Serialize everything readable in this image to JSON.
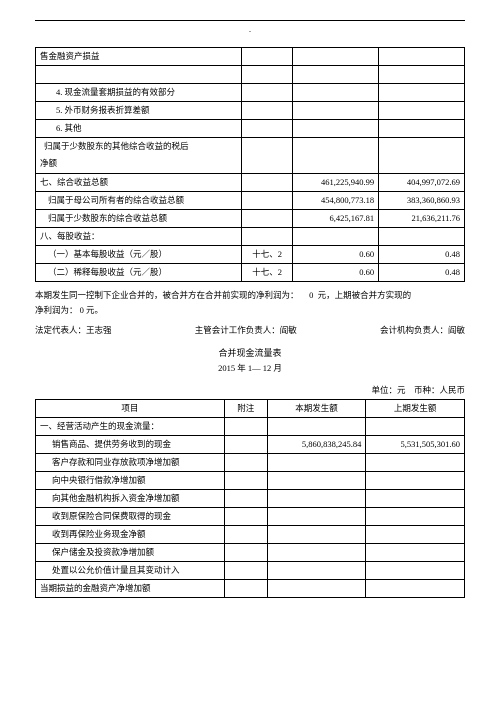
{
  "table1": {
    "rows": [
      {
        "label": "售金融资产损益",
        "note": "",
        "c": "",
        "d": "",
        "pad": 4
      },
      {
        "blank": true
      },
      {
        "label": "4. 现金流量套期损益的有效部分",
        "note": "",
        "c": "",
        "d": "",
        "pad": 20
      },
      {
        "label": "5. 外币财务报表折算差额",
        "note": "",
        "c": "",
        "d": "",
        "pad": 20
      },
      {
        "label": "6. 其他",
        "note": "",
        "c": "",
        "d": "",
        "pad": 20
      },
      {
        "label": "归属于少数股东的其他综合收益的税后",
        "note": "",
        "c": "",
        "d": "",
        "pad": 8,
        "tall": true
      },
      {
        "label": "净额",
        "note": "",
        "c": "",
        "d": "",
        "pad": 4,
        "noTop": true
      },
      {
        "label": "七、综合收益总额",
        "note": "",
        "c": "461,225,940.99",
        "d": "404,997,072.69",
        "pad": 4
      },
      {
        "label": "归属于母公司所有者的综合收益总额",
        "note": "",
        "c": "454,800,773.18",
        "d": "383,360,860.93",
        "pad": 12
      },
      {
        "label": "归属于少数股东的综合收益总额",
        "note": "",
        "c": "6,425,167.81",
        "d": "21,636,211.76",
        "pad": 12
      },
      {
        "label": "八、每股收益：",
        "note": "",
        "c": "",
        "d": "",
        "pad": 4
      },
      {
        "label": "（一）基本每股收益（元／股）",
        "note": "十七、2",
        "c": "0.60",
        "d": "0.48",
        "pad": 12
      },
      {
        "label": "（二）稀释每股收益（元／股）",
        "note": "十七、2",
        "c": "0.60",
        "d": "0.48",
        "pad": 12
      }
    ]
  },
  "notes": {
    "line1a": "本期发生同一控制下企业合并的，被合并方在合并前实现的净利润为：",
    "line1b": "0",
    "line1c": "元，上期被合并方实现的",
    "line2a": "净利润为：",
    "line2b": "0",
    "line2c": "元。"
  },
  "sig": {
    "a": "法定代表人：王志强",
    "b": "主管会计工作负责人：阎敏",
    "c": "会计机构负责人：阎敏"
  },
  "section2": {
    "title": "合并现金流量表",
    "period": "2015 年 1— 12 月",
    "unit": "单位：元    币种：人民币"
  },
  "table2": {
    "headers": {
      "item": "项目",
      "note": "附注",
      "cur": "本期发生额",
      "prev": "上期发生额"
    },
    "rows": [
      {
        "label": "一、经营活动产生的现金流量：",
        "c": "",
        "d": "",
        "pad": 4
      },
      {
        "label": "销售商品、提供劳务收到的现金",
        "c": "5,860,838,245.84",
        "d": "5,531,505,301.60",
        "pad": 16
      },
      {
        "label": "客户存款和同业存放款项净增加额",
        "c": "",
        "d": "",
        "pad": 16
      },
      {
        "label": "向中央银行借款净增加额",
        "c": "",
        "d": "",
        "pad": 16
      },
      {
        "label": "向其他金融机构拆入资金净增加额",
        "c": "",
        "d": "",
        "pad": 16
      },
      {
        "label": "收到原保险合同保费取得的现金",
        "c": "",
        "d": "",
        "pad": 16
      },
      {
        "label": "收到再保险业务现金净额",
        "c": "",
        "d": "",
        "pad": 16
      },
      {
        "label": "保户储金及投资款净增加额",
        "c": "",
        "d": "",
        "pad": 16
      },
      {
        "label": "处置以公允价值计量且其变动计入",
        "c": "",
        "d": "",
        "pad": 16
      },
      {
        "label": "当期损益的金融资产净增加额",
        "c": "",
        "d": "",
        "pad": 4
      }
    ]
  }
}
